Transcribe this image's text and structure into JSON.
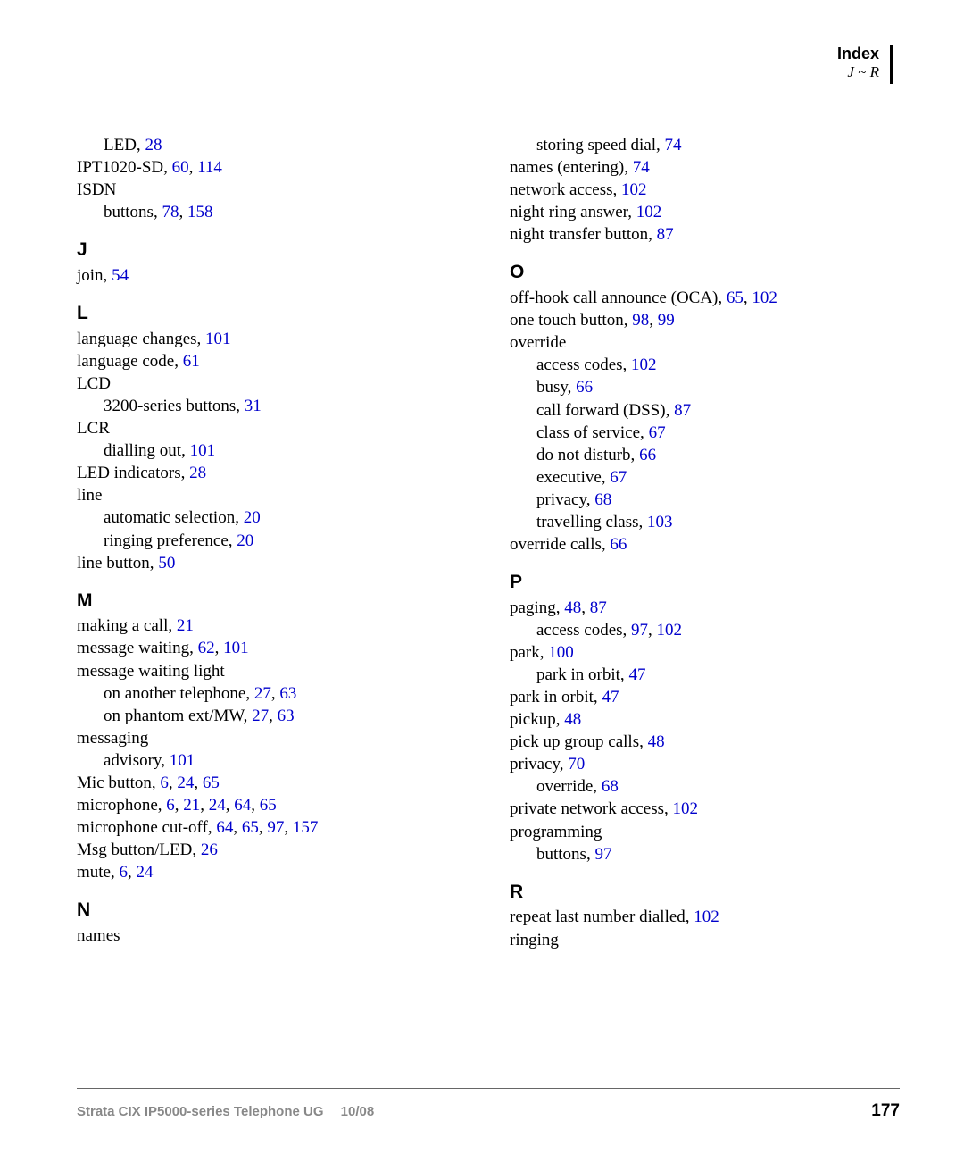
{
  "header": {
    "title": "Index",
    "subtitle": "J ~ R"
  },
  "footer": {
    "left": "Strata CIX IP5000-series Telephone UG  10/08",
    "page_number": "177"
  },
  "link_color": "#0000cc",
  "text_color": "#000000",
  "background_color": "#ffffff",
  "body_font": "Georgia, serif",
  "heading_font": "Arial, sans-serif",
  "left_col": [
    {
      "type": "entry",
      "indent": 1,
      "text": "LED,",
      "pages": [
        "28"
      ]
    },
    {
      "type": "entry",
      "indent": 0,
      "text": "IPT1020-SD,",
      "pages": [
        "60",
        "114"
      ]
    },
    {
      "type": "entry",
      "indent": 0,
      "text": "ISDN",
      "pages": []
    },
    {
      "type": "entry",
      "indent": 1,
      "text": "buttons,",
      "pages": [
        "78",
        "158"
      ]
    },
    {
      "type": "letter",
      "text": "J"
    },
    {
      "type": "entry",
      "indent": 0,
      "text": "join,",
      "pages": [
        "54"
      ]
    },
    {
      "type": "letter",
      "text": "L"
    },
    {
      "type": "entry",
      "indent": 0,
      "text": "language changes,",
      "pages": [
        "101"
      ]
    },
    {
      "type": "entry",
      "indent": 0,
      "text": "language code,",
      "pages": [
        "61"
      ]
    },
    {
      "type": "entry",
      "indent": 0,
      "text": "LCD",
      "pages": []
    },
    {
      "type": "entry",
      "indent": 1,
      "text": "3200-series buttons,",
      "pages": [
        "31"
      ]
    },
    {
      "type": "entry",
      "indent": 0,
      "text": "LCR",
      "pages": []
    },
    {
      "type": "entry",
      "indent": 1,
      "text": "dialling out,",
      "pages": [
        "101"
      ]
    },
    {
      "type": "entry",
      "indent": 0,
      "text": "LED indicators,",
      "pages": [
        "28"
      ]
    },
    {
      "type": "entry",
      "indent": 0,
      "text": "line",
      "pages": []
    },
    {
      "type": "entry",
      "indent": 1,
      "text": "automatic selection,",
      "pages": [
        "20"
      ]
    },
    {
      "type": "entry",
      "indent": 1,
      "text": "ringing preference,",
      "pages": [
        "20"
      ]
    },
    {
      "type": "entry",
      "indent": 0,
      "text": "line button,",
      "pages": [
        "50"
      ]
    },
    {
      "type": "letter",
      "text": "M"
    },
    {
      "type": "entry",
      "indent": 0,
      "text": "making a call,",
      "pages": [
        "21"
      ]
    },
    {
      "type": "entry",
      "indent": 0,
      "text": "message waiting,",
      "pages": [
        "62",
        "101"
      ]
    },
    {
      "type": "entry",
      "indent": 0,
      "text": "message waiting light",
      "pages": []
    },
    {
      "type": "entry",
      "indent": 1,
      "text": "on another telephone,",
      "pages": [
        "27",
        "63"
      ]
    },
    {
      "type": "entry",
      "indent": 1,
      "text": "on phantom ext/MW,",
      "pages": [
        "27",
        "63"
      ]
    },
    {
      "type": "entry",
      "indent": 0,
      "text": "messaging",
      "pages": []
    },
    {
      "type": "entry",
      "indent": 1,
      "text": "advisory,",
      "pages": [
        "101"
      ]
    },
    {
      "type": "entry",
      "indent": 0,
      "text": "Mic button,",
      "pages": [
        "6",
        "24",
        "65"
      ]
    },
    {
      "type": "entry",
      "indent": 0,
      "text": "microphone,",
      "pages": [
        "6",
        "21",
        "24",
        "64",
        "65"
      ]
    },
    {
      "type": "entry",
      "indent": 0,
      "text": "microphone cut-off,",
      "pages": [
        "64",
        "65",
        "97",
        "157"
      ]
    },
    {
      "type": "entry",
      "indent": 0,
      "text": "Msg button/LED,",
      "pages": [
        "26"
      ]
    },
    {
      "type": "entry",
      "indent": 0,
      "text": "mute,",
      "pages": [
        "6",
        "24"
      ]
    },
    {
      "type": "letter",
      "text": "N"
    },
    {
      "type": "entry",
      "indent": 0,
      "text": "names",
      "pages": []
    }
  ],
  "right_col": [
    {
      "type": "entry",
      "indent": 1,
      "text": "storing speed dial,",
      "pages": [
        "74"
      ]
    },
    {
      "type": "entry",
      "indent": 0,
      "text": "names (entering),",
      "pages": [
        "74"
      ]
    },
    {
      "type": "entry",
      "indent": 0,
      "text": "network access,",
      "pages": [
        "102"
      ]
    },
    {
      "type": "entry",
      "indent": 0,
      "text": "night ring answer,",
      "pages": [
        "102"
      ]
    },
    {
      "type": "entry",
      "indent": 0,
      "text": "night transfer button,",
      "pages": [
        "87"
      ]
    },
    {
      "type": "letter",
      "text": "O"
    },
    {
      "type": "entry",
      "indent": 0,
      "text": "off-hook call announce (OCA),",
      "pages": [
        "65",
        "102"
      ]
    },
    {
      "type": "entry",
      "indent": 0,
      "text": "one touch button,",
      "pages": [
        "98",
        "99"
      ]
    },
    {
      "type": "entry",
      "indent": 0,
      "text": "override",
      "pages": []
    },
    {
      "type": "entry",
      "indent": 1,
      "text": "access codes,",
      "pages": [
        "102"
      ]
    },
    {
      "type": "entry",
      "indent": 1,
      "text": "busy,",
      "pages": [
        "66"
      ]
    },
    {
      "type": "entry",
      "indent": 1,
      "text": "call forward (DSS),",
      "pages": [
        "87"
      ]
    },
    {
      "type": "entry",
      "indent": 1,
      "text": "class of service,",
      "pages": [
        "67"
      ]
    },
    {
      "type": "entry",
      "indent": 1,
      "text": "do not disturb,",
      "pages": [
        "66"
      ]
    },
    {
      "type": "entry",
      "indent": 1,
      "text": "executive,",
      "pages": [
        "67"
      ]
    },
    {
      "type": "entry",
      "indent": 1,
      "text": "privacy,",
      "pages": [
        "68"
      ]
    },
    {
      "type": "entry",
      "indent": 1,
      "text": "travelling class,",
      "pages": [
        "103"
      ]
    },
    {
      "type": "entry",
      "indent": 0,
      "text": "override calls,",
      "pages": [
        "66"
      ]
    },
    {
      "type": "letter",
      "text": "P"
    },
    {
      "type": "entry",
      "indent": 0,
      "text": "paging,",
      "pages": [
        "48",
        "87"
      ]
    },
    {
      "type": "entry",
      "indent": 1,
      "text": "access codes,",
      "pages": [
        "97",
        "102"
      ]
    },
    {
      "type": "entry",
      "indent": 0,
      "text": "park,",
      "pages": [
        "100"
      ]
    },
    {
      "type": "entry",
      "indent": 1,
      "text": "park in orbit,",
      "pages": [
        "47"
      ]
    },
    {
      "type": "entry",
      "indent": 0,
      "text": "park in orbit,",
      "pages": [
        "47"
      ]
    },
    {
      "type": "entry",
      "indent": 0,
      "text": "pickup,",
      "pages": [
        "48"
      ]
    },
    {
      "type": "entry",
      "indent": 0,
      "text": "pick up group calls,",
      "pages": [
        "48"
      ]
    },
    {
      "type": "entry",
      "indent": 0,
      "text": "privacy,",
      "pages": [
        "70"
      ]
    },
    {
      "type": "entry",
      "indent": 1,
      "text": "override,",
      "pages": [
        "68"
      ]
    },
    {
      "type": "entry",
      "indent": 0,
      "text": "private network access,",
      "pages": [
        "102"
      ]
    },
    {
      "type": "entry",
      "indent": 0,
      "text": "programming",
      "pages": []
    },
    {
      "type": "entry",
      "indent": 1,
      "text": "buttons,",
      "pages": [
        "97"
      ]
    },
    {
      "type": "letter",
      "text": "R"
    },
    {
      "type": "entry",
      "indent": 0,
      "text": "repeat last number dialled,",
      "pages": [
        "102"
      ]
    },
    {
      "type": "entry",
      "indent": 0,
      "text": "ringing",
      "pages": []
    }
  ]
}
